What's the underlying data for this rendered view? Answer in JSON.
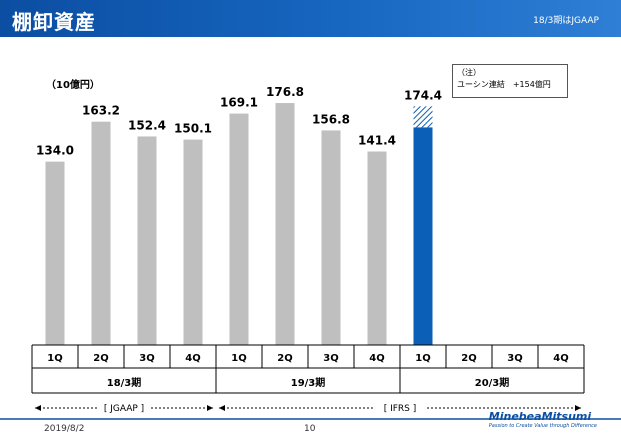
{
  "header": {
    "title": "棚卸資産",
    "note": "18/3期はJGAAP"
  },
  "unit_label": "（10億円）",
  "callout": {
    "line1": "（注）",
    "line2": "ユーシン連結　+154億円"
  },
  "footer": {
    "date": "2019/8/2",
    "page": "10",
    "logo": "MinebeaMitsumi",
    "tagline": "Passion to Create Value through Difference"
  },
  "colors": {
    "bar_gray": "#bfbfbf",
    "bar_blue": "#0b5fb6",
    "header": "#0b4ea2"
  },
  "chart_data": {
    "type": "bar",
    "categories": [
      "1Q",
      "2Q",
      "3Q",
      "4Q",
      "1Q",
      "2Q",
      "3Q",
      "4Q",
      "1Q",
      "2Q",
      "3Q",
      "4Q"
    ],
    "values": [
      134.0,
      163.2,
      152.4,
      150.1,
      169.1,
      176.8,
      156.8,
      141.4,
      174.4,
      null,
      null,
      null
    ],
    "value_labels": [
      "134.0",
      "163.2",
      "152.4",
      "150.1",
      "169.1",
      "176.8",
      "156.8",
      "141.4",
      "174.4",
      "",
      "",
      ""
    ],
    "ylim": [
      0,
      190
    ],
    "highlight_index": 8,
    "highlight_hatched_portion": 15.4,
    "groups": [
      {
        "label": "18/3期",
        "start": 0,
        "end": 3
      },
      {
        "label": "19/3期",
        "start": 4,
        "end": 7
      },
      {
        "label": "20/3期",
        "start": 8,
        "end": 11
      }
    ],
    "standards": [
      {
        "label": "[ JGAAP ]",
        "start": 0,
        "end": 3
      },
      {
        "label": "[ IFRS ]",
        "start": 4,
        "end": 11
      }
    ]
  }
}
